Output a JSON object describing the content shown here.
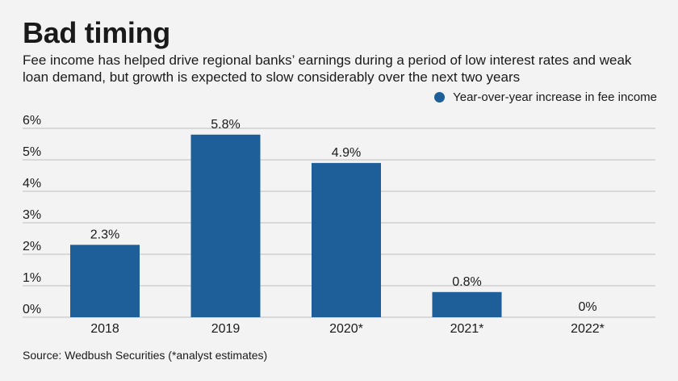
{
  "header": {
    "title": "Bad timing",
    "subtitle": "Fee income has helped drive regional banks’ earnings during a period of low interest rates and weak loan demand, but growth is expected to slow considerably over the next two years"
  },
  "footer": {
    "source": "Source: Wedbush Securities (*analyst estimates)"
  },
  "colors": {
    "bar": "#1e5f99",
    "grid": "#bdbdbd",
    "background": "#f3f3f3"
  },
  "chart_data": {
    "type": "bar",
    "categories": [
      "2018",
      "2019",
      "2020*",
      "2021*",
      "2022*"
    ],
    "series": [
      {
        "name": "Year-over-year increase in fee income",
        "values": [
          2.3,
          5.8,
          4.9,
          0.8,
          0
        ]
      }
    ],
    "data_labels": [
      "2.3%",
      "5.8%",
      "4.9%",
      "0.8%",
      "0%"
    ],
    "y_ticks": [
      0,
      1,
      2,
      3,
      4,
      5,
      6
    ],
    "y_tick_labels": [
      "0%",
      "1%",
      "2%",
      "3%",
      "4%",
      "5%",
      "6%"
    ],
    "ylim": [
      0,
      6
    ],
    "grid": true,
    "legend_position": "top-right"
  }
}
